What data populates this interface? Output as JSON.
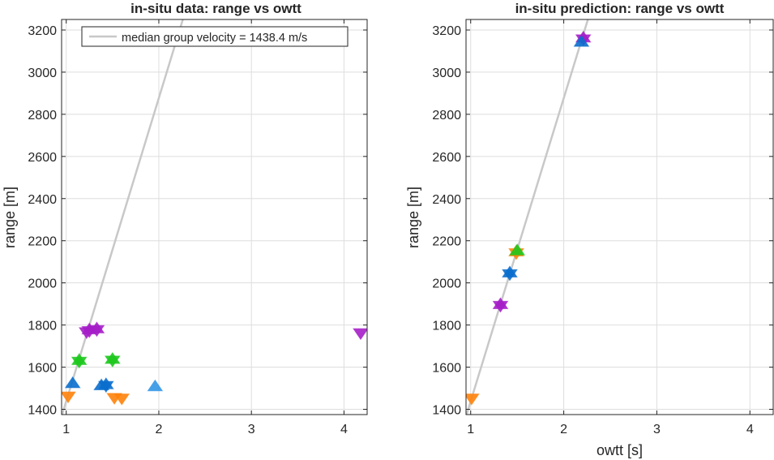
{
  "chart_data": [
    {
      "type": "scatter",
      "title": "in-situ data: range vs owtt",
      "xlabel": "",
      "ylabel": "range [m]",
      "xlim": [
        0.95,
        4.25
      ],
      "ylim": [
        1375,
        3250
      ],
      "xticks": [
        1,
        2,
        3,
        4
      ],
      "yticks": [
        1400,
        1600,
        1800,
        2000,
        2200,
        2400,
        2600,
        2800,
        3000,
        3200
      ],
      "grid": true,
      "legend": {
        "entries": [
          "median group velocity = 1438.4 m/s"
        ],
        "position": "top"
      },
      "fit_line": {
        "label": "median group velocity = 1438.4 m/s",
        "slope": 1438.4,
        "intercept": 0,
        "color": "#c8c8c8"
      },
      "series": [
        {
          "color": "#a51ec8",
          "points": [
            {
              "x": 1.25,
              "y": 1775,
              "m": "star"
            },
            {
              "x": 1.33,
              "y": 1780,
              "m": "star"
            },
            {
              "x": 1.22,
              "y": 1770,
              "m": "down"
            },
            {
              "x": 4.18,
              "y": 1765,
              "m": "down"
            }
          ]
        },
        {
          "color": "#1ec81e",
          "points": [
            {
              "x": 1.14,
              "y": 1630,
              "m": "star"
            },
            {
              "x": 1.5,
              "y": 1635,
              "m": "star"
            }
          ]
        },
        {
          "color": "#0a6ecd",
          "points": [
            {
              "x": 1.07,
              "y": 1520,
              "m": "up"
            },
            {
              "x": 1.43,
              "y": 1515,
              "m": "star"
            },
            {
              "x": 1.38,
              "y": 1510,
              "m": "up"
            }
          ]
        },
        {
          "color": "#3296e6",
          "points": [
            {
              "x": 1.96,
              "y": 1505,
              "m": "up"
            }
          ]
        },
        {
          "color": "#ff820a",
          "points": [
            {
              "x": 1.02,
              "y": 1465,
              "m": "down"
            },
            {
              "x": 1.52,
              "y": 1458,
              "m": "down"
            },
            {
              "x": 1.6,
              "y": 1455,
              "m": "down"
            }
          ]
        }
      ]
    },
    {
      "type": "scatter",
      "title": "in-situ prediction: range vs owtt",
      "xlabel": "owtt [s]",
      "ylabel": "range [m]",
      "xlim": [
        0.95,
        4.25
      ],
      "ylim": [
        1375,
        3250
      ],
      "xticks": [
        1,
        2,
        3,
        4
      ],
      "yticks": [
        1400,
        1600,
        1800,
        2000,
        2200,
        2400,
        2600,
        2800,
        3000,
        3200
      ],
      "grid": true,
      "fit_line": {
        "slope": 1438.4,
        "intercept": 0,
        "color": "#c8c8c8"
      },
      "series": [
        {
          "color": "#a51ec8",
          "points": [
            {
              "x": 2.21,
              "y": 3160,
              "m": "star"
            },
            {
              "x": 1.32,
              "y": 1895,
              "m": "star"
            }
          ]
        },
        {
          "color": "#0a6ecd",
          "points": [
            {
              "x": 2.19,
              "y": 3140,
              "m": "up"
            },
            {
              "x": 1.42,
              "y": 2045,
              "m": "star"
            }
          ]
        },
        {
          "color": "#ff820a",
          "points": [
            {
              "x": 1.49,
              "y": 2145,
              "m": "star"
            },
            {
              "x": 1.01,
              "y": 1455,
              "m": "down"
            }
          ]
        },
        {
          "color": "#1ec81e",
          "points": [
            {
              "x": 1.5,
              "y": 2150,
              "m": "up"
            }
          ]
        }
      ]
    }
  ]
}
